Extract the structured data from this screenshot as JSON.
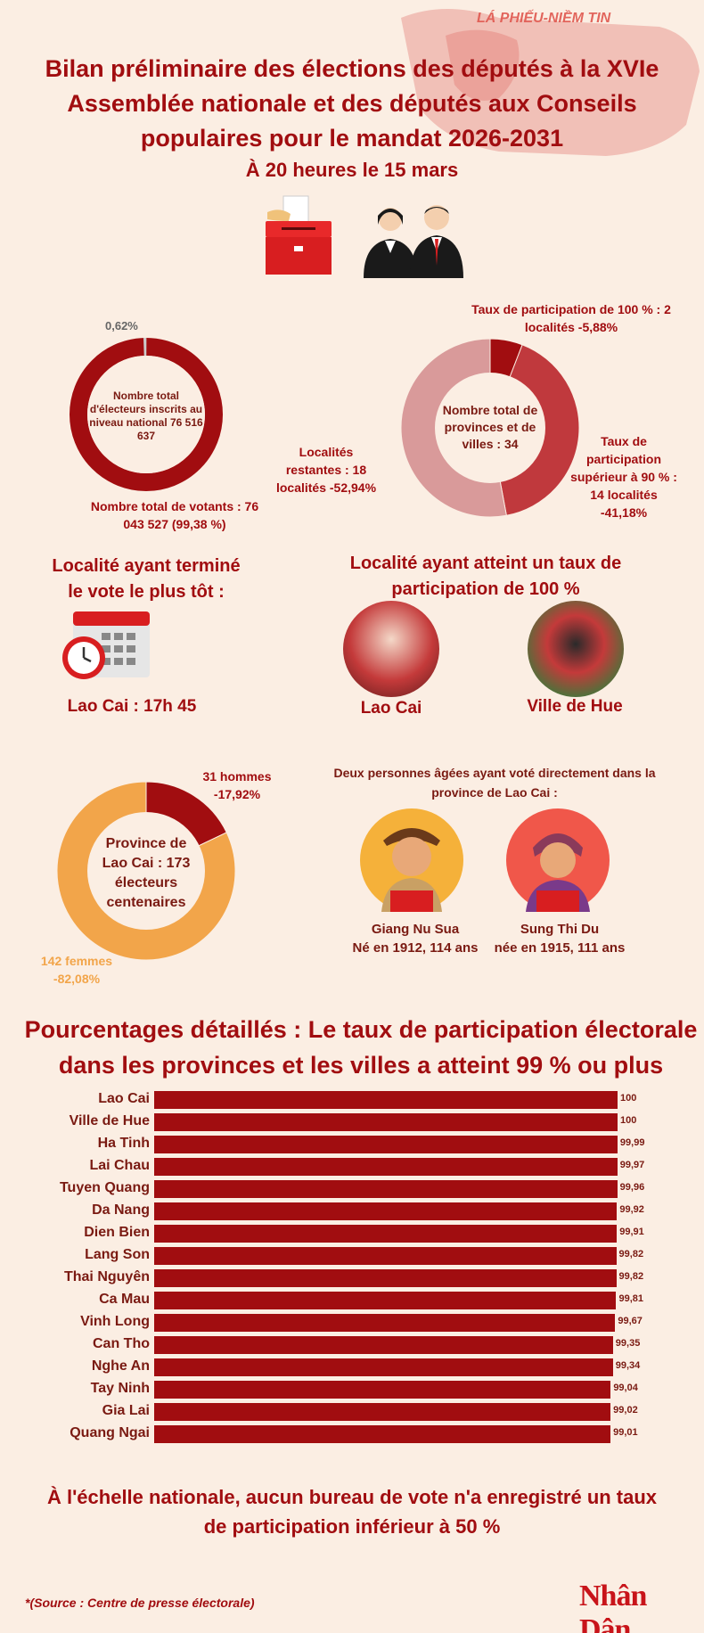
{
  "banner": {
    "stamp_text": "LÁ PHIẾU-NIỀM TIN"
  },
  "header": {
    "title": "Bilan préliminaire des élections des députés à la XVIe Assemblée nationale et des députés aux Conseils populaires pour le mandat 2026-2031",
    "time": "À 20 heures le 15 mars"
  },
  "voters_chart": {
    "top_label": "0,62%",
    "center": "Nombre total d'électeurs inscrits au niveau national 76 516 637",
    "bottom_label": "Nombre total de votants : 76 043 527 (99,38 %)",
    "voted_pct": 99.38,
    "not_voted_pct": 0.62
  },
  "provinces_chart": {
    "center": "Nombre total de provinces et de villes : 34",
    "label_100": "Taux de participation de 100 % : 2 localités -5,88%",
    "label_90": "Taux de participation supérieur à 90 % : 14 localités -41,18%",
    "label_rest": "Localités restantes : 18 localités -52,94%",
    "slices": [
      5.88,
      41.18,
      52.94
    ]
  },
  "earliest": {
    "title": "Localité ayant terminé le vote le plus tôt :",
    "value": "Lao Cai : 17h 45"
  },
  "full_participation": {
    "title": "Localité ayant atteint un taux de participation de 100 %",
    "places": [
      "Lao Cai",
      "Ville de Hue"
    ]
  },
  "centenarians_chart": {
    "center": "Province de Lao Cai : 173 électeurs centenaires",
    "men_label": "31 hommes -17,92%",
    "women_label": "142 femmes -82,08%",
    "men_pct": 17.92,
    "women_pct": 82.08
  },
  "elders": {
    "title": "Deux personnes âgées ayant voté directement dans la province de Lao Cai :",
    "people": [
      {
        "name": "Giang Nu Sua",
        "detail": "Né en 1912, 114 ans"
      },
      {
        "name": "Sung Thi Du",
        "detail": "née en 1915, 111 ans"
      }
    ]
  },
  "chart_data": {
    "type": "bar",
    "title": "Pourcentages détaillés : Le taux de participation électorale dans les provinces et les villes a atteint 99 % ou plus",
    "categories": [
      "Lao Cai",
      "Ville de Hue",
      "Ha Tinh",
      "Lai Chau",
      "Tuyen Quang",
      "Da Nang",
      "Dien Bien",
      "Lang Son",
      "Thai Nguyên",
      "Ca Mau",
      "Vinh Long",
      "Can Tho",
      "Nghe An",
      "Tay Ninh",
      "Gia Lai",
      "Quang Ngai"
    ],
    "values": [
      100,
      100,
      99.99,
      99.97,
      99.96,
      99.92,
      99.91,
      99.82,
      99.82,
      99.81,
      99.67,
      99.35,
      99.34,
      99.04,
      99.02,
      99.01
    ],
    "value_labels": [
      "100",
      "100",
      "99,99",
      "99,97",
      "99,96",
      "99,92",
      "99,91",
      "99,82",
      "99,82",
      "99,81",
      "99,67",
      "99,35",
      "99,34",
      "99,04",
      "99,02",
      "99,01"
    ],
    "orientation": "horizontal"
  },
  "footer": {
    "message": "À l'échelle nationale, aucun bureau de vote n'a enregistré un taux de participation inférieur à 50 %",
    "source": "*(Source : Centre de presse électorale)",
    "logo": "Nhân Dân"
  },
  "colors": {
    "dark_red": "#a10d10",
    "mid_red": "#c0393d",
    "light_pink": "#d99a9a",
    "orange": "#f2a54a",
    "background": "#fbeee3"
  }
}
